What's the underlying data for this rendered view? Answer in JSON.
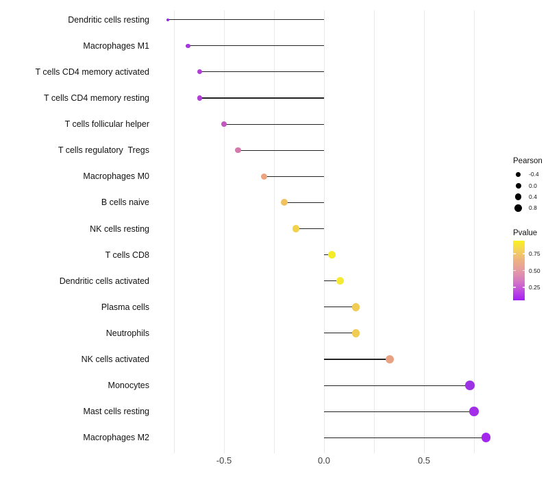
{
  "figure": {
    "background": "#ffffff",
    "gridline_color": "#e9e9e9",
    "stem_color": "#222222",
    "axis_text_color": "#404040",
    "label_text_color": "#111111"
  },
  "chart_data": {
    "type": "scatter",
    "variant": "horizontal-lollipop",
    "title": "",
    "xlabel": "",
    "ylabel": "",
    "grid": "on",
    "legend_position": "right",
    "xlim": [
      -0.86,
      0.89
    ],
    "x_tick_labels": [
      "-0.5",
      "0.0",
      "0.5"
    ],
    "x_tick_values": [
      -0.5,
      0.0,
      0.5
    ],
    "x_gridline_values": [
      -0.75,
      -0.5,
      -0.25,
      0.0,
      0.25,
      0.5,
      0.75
    ],
    "size_encoding": "Pearson",
    "color_encoding": "Pvalue",
    "categories": [
      "Dendritic cells resting",
      "Macrophages M1",
      "T cells CD4 memory activated",
      "T cells CD4 memory resting",
      "T cells follicular helper",
      "T cells regulatory  Tregs",
      "Macrophages M0",
      "B cells naive",
      "NK cells resting",
      "T cells CD8",
      "Dendritic cells activated",
      "Plasma cells",
      "Neutrophils",
      "NK cells activated",
      "Monocytes",
      "Mast cells resting",
      "Macrophages M2"
    ],
    "series": [
      {
        "name": "Pearson",
        "values": [
          -0.78,
          -0.68,
          -0.62,
          -0.62,
          -0.5,
          -0.43,
          -0.3,
          -0.2,
          -0.14,
          0.04,
          0.08,
          0.16,
          0.16,
          0.33,
          0.73,
          0.75,
          0.81
        ]
      }
    ],
    "point_colors": [
      "#9429E8",
      "#A637DE",
      "#B13FD4",
      "#B13FD4",
      "#C158C0",
      "#D578AC",
      "#EBA57E",
      "#EFC25F",
      "#F2D24B",
      "#F5EC28",
      "#F5E933",
      "#F0CC55",
      "#F0CC55",
      "#E9A183",
      "#9C32E4",
      "#A22EE8",
      "#A327EC"
    ]
  },
  "legend": {
    "size_legend": {
      "title": "Pearson",
      "dot_color": "#000000",
      "items": [
        {
          "label": "-0.4",
          "value": -0.4
        },
        {
          "label": "0.0",
          "value": 0.0
        },
        {
          "label": "0.4",
          "value": 0.4
        },
        {
          "label": "0.8",
          "value": 0.8
        }
      ]
    },
    "color_legend": {
      "title": "Pvalue",
      "tick_labels": [
        "0.75",
        "0.50",
        "0.25"
      ],
      "gradient_top_to_bottom": [
        "#F9F121",
        "#F4D15C",
        "#EDB183",
        "#E59BA2",
        "#D77BC0",
        "#C14FDE",
        "#A21EF2"
      ]
    }
  }
}
